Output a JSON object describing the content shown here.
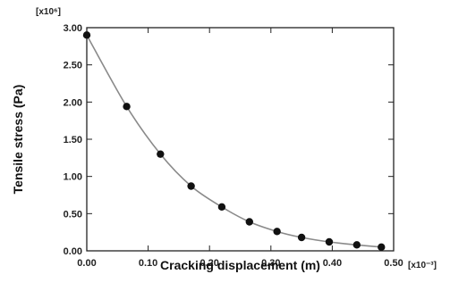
{
  "chart_data": {
    "type": "line",
    "xlabel": "Cracking displacement (m)",
    "ylabel": "Tensile stress (Pa)",
    "x_scale_label": "[x10⁻³]",
    "y_scale_label": "[x10⁶]",
    "xlim": [
      0,
      0.5
    ],
    "ylim": [
      0,
      3.0
    ],
    "x_ticks": [
      "0.00",
      "0.10",
      "0.20",
      "0.30",
      "0.40",
      "0.50"
    ],
    "y_ticks": [
      "0.00",
      "0.50",
      "1.00",
      "1.50",
      "2.00",
      "2.50",
      "3.00"
    ],
    "grid": false,
    "series": [
      {
        "x": [
          0.0,
          0.065,
          0.12,
          0.17,
          0.22,
          0.265,
          0.31,
          0.35,
          0.395,
          0.44,
          0.48
        ],
        "y": [
          2.9,
          1.94,
          1.3,
          0.87,
          0.59,
          0.39,
          0.26,
          0.18,
          0.12,
          0.08,
          0.05
        ]
      }
    ]
  },
  "colors": {
    "line": "#8a8a8a",
    "marker": "#111111",
    "axis": "#222222"
  }
}
